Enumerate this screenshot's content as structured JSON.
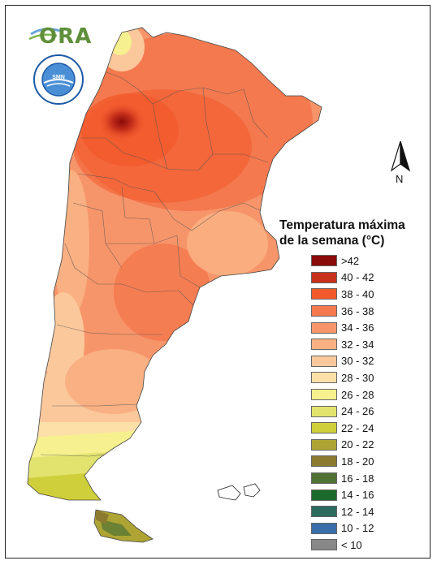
{
  "logo": {
    "text": "ORA"
  },
  "seal": {
    "label": "SERVICIO METEOROLÓGICO NACIONAL · ARGENTINA"
  },
  "north_arrow": {
    "label": "N",
    "icon": "north-arrow-icon"
  },
  "legend": {
    "title": "Temperatura máxima\nde la semana (°C)",
    "items": [
      {
        "label": ">42",
        "color": "#8b0a0a"
      },
      {
        "label": "40 - 42",
        "color": "#c8311c"
      },
      {
        "label": "38 - 40",
        "color": "#f25a2c"
      },
      {
        "label": "36 - 38",
        "color": "#f4794e"
      },
      {
        "label": "34 - 36",
        "color": "#f7956a"
      },
      {
        "label": "32 - 34",
        "color": "#f9b082"
      },
      {
        "label": "30 - 32",
        "color": "#fbc89c"
      },
      {
        "label": "28 - 30",
        "color": "#fde0a8"
      },
      {
        "label": "26 - 28",
        "color": "#f6f08e"
      },
      {
        "label": "24 - 26",
        "color": "#e2e36e"
      },
      {
        "label": "22 - 24",
        "color": "#cfcf3c"
      },
      {
        "label": "20 - 22",
        "color": "#ada434"
      },
      {
        "label": "18 - 20",
        "color": "#8c7a30"
      },
      {
        "label": "16 - 18",
        "color": "#4f7233"
      },
      {
        "label": "14 - 16",
        "color": "#1c6b2c"
      },
      {
        "label": "12 - 14",
        "color": "#2d6b5e"
      },
      {
        "label": "10 - 12",
        "color": "#3a6ea8"
      },
      {
        "label": "< 10",
        "color": "#888888"
      }
    ]
  }
}
